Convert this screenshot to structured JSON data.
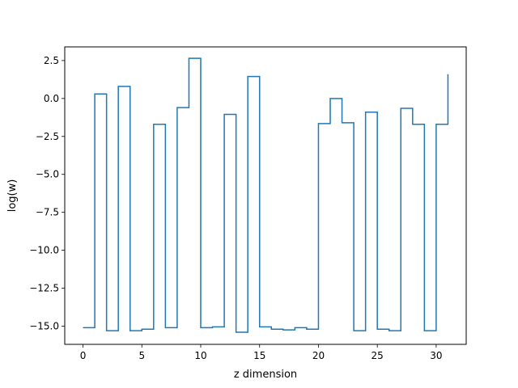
{
  "chart_data": {
    "type": "line",
    "drawstyle": "steps-post",
    "title": "",
    "xlabel": "z dimension",
    "ylabel": "log(w)",
    "xlim": [
      -1.55,
      32.55
    ],
    "ylim": [
      -16.2,
      3.4
    ],
    "x_ticks": [
      0,
      5,
      10,
      15,
      20,
      25,
      30
    ],
    "x_tick_labels": [
      "0",
      "5",
      "10",
      "15",
      "20",
      "25",
      "30"
    ],
    "y_ticks": [
      2.5,
      0.0,
      -2.5,
      -5.0,
      -7.5,
      -10.0,
      -12.5,
      -15.0
    ],
    "y_tick_labels": [
      "2.5",
      "0.0",
      "−2.5",
      "−5.0",
      "−7.5",
      "−10.0",
      "−12.5",
      "−15.0"
    ],
    "grid": false,
    "legend": "none",
    "series": [
      {
        "color": "#1f77b4",
        "x": [
          0,
          1,
          2,
          3,
          4,
          5,
          6,
          7,
          8,
          9,
          10,
          11,
          12,
          13,
          14,
          15,
          16,
          17,
          18,
          19,
          20,
          21,
          22,
          23,
          24,
          25,
          26,
          27,
          28,
          29,
          30,
          31
        ],
        "values": [
          -15.1,
          0.3,
          -15.3,
          0.8,
          -15.3,
          -15.2,
          -1.7,
          -15.1,
          -0.6,
          2.65,
          -15.1,
          -15.05,
          -1.05,
          -15.4,
          1.45,
          -15.05,
          -15.2,
          -15.25,
          -15.1,
          -15.2,
          -1.65,
          0.0,
          -1.6,
          -15.3,
          -0.9,
          -15.2,
          -15.3,
          -0.65,
          -1.7,
          -15.3,
          -1.7,
          1.6
        ]
      }
    ]
  }
}
